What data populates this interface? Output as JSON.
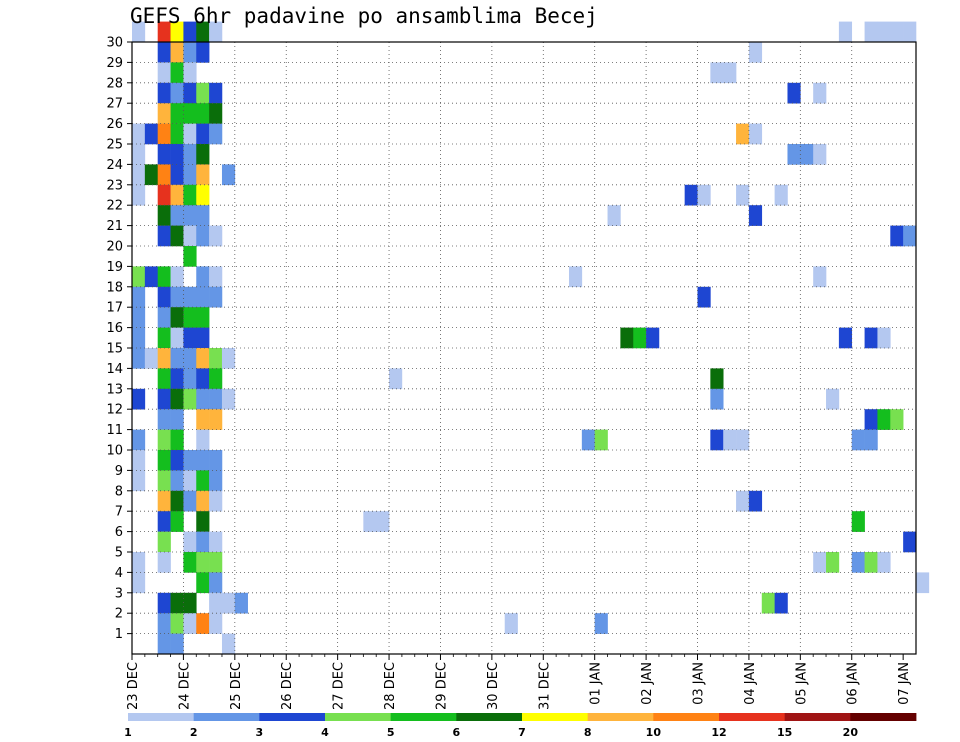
{
  "chart_data": {
    "type": "heatmap",
    "title": "GEFS 6hr padavine po ansamblima Becej",
    "x_tick_labels": [
      "23 DEC",
      "24 DEC",
      "25 DEC",
      "26 DEC",
      "27 DEC",
      "28 DEC",
      "29 DEC",
      "30 DEC",
      "31 DEC",
      "01 JAN",
      "02 JAN",
      "03 JAN",
      "04 JAN",
      "05 JAN",
      "06 JAN",
      "07 JAN"
    ],
    "y_tick_labels": [
      "1",
      "2",
      "3",
      "4",
      "5",
      "6",
      "7",
      "8",
      "9",
      "10",
      "11",
      "12",
      "13",
      "14",
      "15",
      "16",
      "17",
      "18",
      "19",
      "20",
      "21",
      "22",
      "23",
      "24",
      "25",
      "26",
      "27",
      "28",
      "29",
      "30"
    ],
    "x_range_steps": [
      0,
      61
    ],
    "y_range_members": [
      0,
      30
    ],
    "time_step_hours": 6,
    "grid": true,
    "color_levels": [
      1,
      2,
      3,
      4,
      5,
      6,
      7,
      8,
      10,
      12,
      15,
      20
    ],
    "level_colors": [
      "#b4c8f0",
      "#6496e6",
      "#1e46d2",
      "#78e050",
      "#14be1e",
      "#0a6e0a",
      "#ffff00",
      "#ffb43c",
      "#ff8214",
      "#e6321e",
      "#a01414",
      "#640000"
    ],
    "cells": [
      [
        30,
        0,
        0
      ],
      [
        30,
        2,
        9
      ],
      [
        30,
        3,
        6
      ],
      [
        30,
        4,
        2
      ],
      [
        30,
        5,
        5
      ],
      [
        30,
        6,
        0
      ],
      [
        30,
        55,
        0
      ],
      [
        30,
        57,
        0
      ],
      [
        30,
        58,
        0
      ],
      [
        30,
        59,
        0
      ],
      [
        30,
        60,
        0
      ],
      [
        29,
        2,
        2
      ],
      [
        29,
        3,
        7
      ],
      [
        29,
        4,
        1
      ],
      [
        29,
        5,
        2
      ],
      [
        29,
        48,
        0
      ],
      [
        28,
        2,
        0
      ],
      [
        28,
        3,
        4
      ],
      [
        28,
        4,
        0
      ],
      [
        28,
        45,
        0
      ],
      [
        28,
        46,
        0
      ],
      [
        27,
        2,
        2
      ],
      [
        27,
        3,
        1
      ],
      [
        27,
        4,
        2
      ],
      [
        27,
        5,
        3
      ],
      [
        27,
        6,
        2
      ],
      [
        27,
        51,
        2
      ],
      [
        27,
        53,
        0
      ],
      [
        26,
        2,
        7
      ],
      [
        26,
        3,
        4
      ],
      [
        26,
        4,
        4
      ],
      [
        26,
        5,
        4
      ],
      [
        26,
        6,
        5
      ],
      [
        25,
        0,
        0
      ],
      [
        25,
        1,
        2
      ],
      [
        25,
        2,
        8
      ],
      [
        25,
        3,
        4
      ],
      [
        25,
        4,
        0
      ],
      [
        25,
        5,
        2
      ],
      [
        25,
        6,
        1
      ],
      [
        25,
        47,
        7
      ],
      [
        25,
        48,
        0
      ],
      [
        24,
        0,
        0
      ],
      [
        24,
        2,
        2
      ],
      [
        24,
        3,
        2
      ],
      [
        24,
        4,
        1
      ],
      [
        24,
        5,
        5
      ],
      [
        24,
        51,
        1
      ],
      [
        24,
        52,
        1
      ],
      [
        24,
        53,
        0
      ],
      [
        23,
        0,
        0
      ],
      [
        23,
        1,
        5
      ],
      [
        23,
        2,
        8
      ],
      [
        23,
        3,
        2
      ],
      [
        23,
        4,
        1
      ],
      [
        23,
        5,
        7
      ],
      [
        23,
        7,
        1
      ],
      [
        22,
        0,
        0
      ],
      [
        22,
        2,
        9
      ],
      [
        22,
        3,
        7
      ],
      [
        22,
        4,
        4
      ],
      [
        22,
        5,
        6
      ],
      [
        22,
        43,
        2
      ],
      [
        22,
        44,
        0
      ],
      [
        22,
        47,
        0
      ],
      [
        22,
        50,
        0
      ],
      [
        21,
        2,
        5
      ],
      [
        21,
        3,
        1
      ],
      [
        21,
        4,
        1
      ],
      [
        21,
        5,
        1
      ],
      [
        21,
        37,
        0
      ],
      [
        21,
        48,
        2
      ],
      [
        20,
        2,
        2
      ],
      [
        20,
        3,
        5
      ],
      [
        20,
        4,
        0
      ],
      [
        20,
        5,
        1
      ],
      [
        20,
        6,
        0
      ],
      [
        20,
        59,
        2
      ],
      [
        20,
        60,
        1
      ],
      [
        19,
        4,
        4
      ],
      [
        18,
        0,
        3
      ],
      [
        18,
        1,
        2
      ],
      [
        18,
        2,
        4
      ],
      [
        18,
        3,
        0
      ],
      [
        18,
        5,
        1
      ],
      [
        18,
        6,
        0
      ],
      [
        18,
        34,
        0
      ],
      [
        18,
        53,
        0
      ],
      [
        17,
        0,
        1
      ],
      [
        17,
        2,
        2
      ],
      [
        17,
        3,
        1
      ],
      [
        17,
        4,
        1
      ],
      [
        17,
        5,
        1
      ],
      [
        17,
        6,
        1
      ],
      [
        17,
        44,
        2
      ],
      [
        16,
        0,
        1
      ],
      [
        16,
        2,
        1
      ],
      [
        16,
        3,
        5
      ],
      [
        16,
        4,
        4
      ],
      [
        16,
        5,
        4
      ],
      [
        15,
        0,
        1
      ],
      [
        15,
        2,
        4
      ],
      [
        15,
        3,
        0
      ],
      [
        15,
        4,
        2
      ],
      [
        15,
        5,
        2
      ],
      [
        15,
        38,
        5
      ],
      [
        15,
        39,
        4
      ],
      [
        15,
        40,
        2
      ],
      [
        15,
        55,
        2
      ],
      [
        15,
        57,
        2
      ],
      [
        15,
        58,
        0
      ],
      [
        14,
        0,
        1
      ],
      [
        14,
        1,
        0
      ],
      [
        14,
        2,
        7
      ],
      [
        14,
        3,
        1
      ],
      [
        14,
        4,
        1
      ],
      [
        14,
        5,
        7
      ],
      [
        14,
        6,
        3
      ],
      [
        14,
        7,
        0
      ],
      [
        13,
        2,
        4
      ],
      [
        13,
        3,
        2
      ],
      [
        13,
        4,
        1
      ],
      [
        13,
        5,
        2
      ],
      [
        13,
        6,
        4
      ],
      [
        13,
        20,
        0
      ],
      [
        13,
        45,
        5
      ],
      [
        12,
        0,
        2
      ],
      [
        12,
        2,
        2
      ],
      [
        12,
        3,
        5
      ],
      [
        12,
        4,
        3
      ],
      [
        12,
        5,
        1
      ],
      [
        12,
        6,
        1
      ],
      [
        12,
        7,
        0
      ],
      [
        12,
        45,
        1
      ],
      [
        12,
        54,
        0
      ],
      [
        11,
        2,
        1
      ],
      [
        11,
        3,
        1
      ],
      [
        11,
        5,
        7
      ],
      [
        11,
        6,
        7
      ],
      [
        11,
        57,
        2
      ],
      [
        11,
        58,
        4
      ],
      [
        11,
        59,
        3
      ],
      [
        10,
        0,
        1
      ],
      [
        10,
        2,
        3
      ],
      [
        10,
        3,
        4
      ],
      [
        10,
        5,
        0
      ],
      [
        10,
        35,
        1
      ],
      [
        10,
        36,
        3
      ],
      [
        10,
        45,
        2
      ],
      [
        10,
        46,
        0
      ],
      [
        10,
        47,
        0
      ],
      [
        10,
        56,
        1
      ],
      [
        10,
        57,
        1
      ],
      [
        9,
        0,
        0
      ],
      [
        9,
        2,
        4
      ],
      [
        9,
        3,
        2
      ],
      [
        9,
        4,
        1
      ],
      [
        9,
        5,
        1
      ],
      [
        9,
        6,
        1
      ],
      [
        8,
        0,
        0
      ],
      [
        8,
        2,
        3
      ],
      [
        8,
        3,
        1
      ],
      [
        8,
        4,
        0
      ],
      [
        8,
        5,
        4
      ],
      [
        8,
        6,
        1
      ],
      [
        7,
        2,
        7
      ],
      [
        7,
        3,
        5
      ],
      [
        7,
        4,
        1
      ],
      [
        7,
        5,
        7
      ],
      [
        7,
        6,
        0
      ],
      [
        7,
        47,
        0
      ],
      [
        7,
        48,
        2
      ],
      [
        6,
        2,
        2
      ],
      [
        6,
        3,
        4
      ],
      [
        6,
        5,
        5
      ],
      [
        6,
        18,
        0
      ],
      [
        6,
        19,
        0
      ],
      [
        6,
        56,
        4
      ],
      [
        5,
        2,
        3
      ],
      [
        5,
        4,
        0
      ],
      [
        5,
        5,
        1
      ],
      [
        5,
        6,
        0
      ],
      [
        5,
        60,
        2
      ],
      [
        4,
        0,
        0
      ],
      [
        4,
        2,
        0
      ],
      [
        4,
        4,
        4
      ],
      [
        4,
        5,
        3
      ],
      [
        4,
        6,
        3
      ],
      [
        4,
        53,
        0
      ],
      [
        4,
        54,
        3
      ],
      [
        4,
        56,
        1
      ],
      [
        4,
        57,
        3
      ],
      [
        4,
        58,
        0
      ],
      [
        3,
        0,
        0
      ],
      [
        3,
        5,
        4
      ],
      [
        3,
        6,
        1
      ],
      [
        3,
        61,
        0
      ],
      [
        2,
        2,
        2
      ],
      [
        2,
        3,
        5
      ],
      [
        2,
        4,
        5
      ],
      [
        2,
        6,
        0
      ],
      [
        2,
        7,
        0
      ],
      [
        2,
        8,
        1
      ],
      [
        2,
        49,
        3
      ],
      [
        2,
        50,
        2
      ],
      [
        1,
        2,
        1
      ],
      [
        1,
        3,
        3
      ],
      [
        1,
        4,
        0
      ],
      [
        1,
        5,
        8
      ],
      [
        1,
        6,
        0
      ],
      [
        1,
        29,
        0
      ],
      [
        1,
        36,
        1
      ],
      [
        0,
        2,
        1
      ],
      [
        0,
        3,
        1
      ],
      [
        0,
        7,
        0
      ]
    ]
  }
}
